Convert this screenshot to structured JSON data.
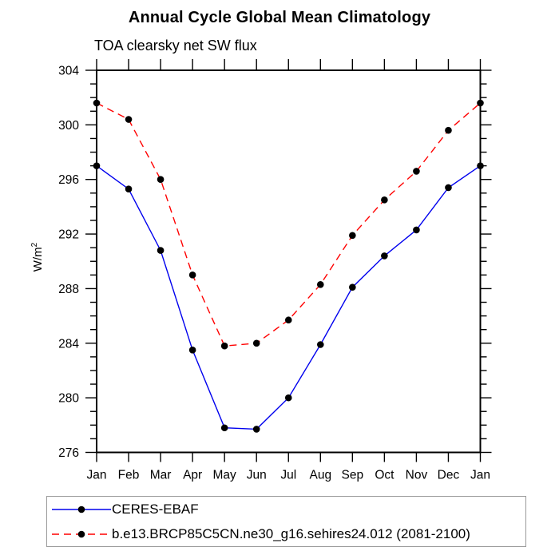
{
  "title": "Annual Cycle Global Mean Climatology",
  "subtitle": "TOA clearsky net SW flux",
  "y_axis": {
    "title_base": "W/m",
    "title_sup": "2",
    "tick_labels": [
      "276",
      "280",
      "284",
      "288",
      "292",
      "296",
      "300",
      "304"
    ],
    "min": 276,
    "max": 304,
    "major_step": 4,
    "minor_step": 1
  },
  "x_axis": {
    "tick_labels": [
      "Jan",
      "Feb",
      "Mar",
      "Apr",
      "May",
      "Jun",
      "Jul",
      "Aug",
      "Sep",
      "Oct",
      "Nov",
      "Dec",
      "Jan"
    ]
  },
  "colors": {
    "series1": "#0000ee",
    "series2": "#ff0000",
    "marker": "#000000",
    "axis": "#000000"
  },
  "legend": {
    "entries": [
      {
        "label": "CERES-EBAF",
        "color": "#0000ee",
        "style": "solid"
      },
      {
        "label": "b.e13.BRCP85C5CN.ne30_g16.sehires24.012 (2081-2100)",
        "color": "#ff0000",
        "style": "dashed"
      }
    ]
  },
  "chart_data": {
    "type": "line",
    "x": [
      "Jan",
      "Feb",
      "Mar",
      "Apr",
      "May",
      "Jun",
      "Jul",
      "Aug",
      "Sep",
      "Oct",
      "Nov",
      "Dec",
      "Jan"
    ],
    "series": [
      {
        "name": "CERES-EBAF",
        "color": "#0000ee",
        "line_style": "solid",
        "marker": "filled-black-circle",
        "values": [
          297.0,
          295.3,
          290.8,
          283.5,
          277.8,
          277.7,
          280.0,
          283.9,
          288.1,
          290.4,
          292.3,
          295.4,
          297.0
        ]
      },
      {
        "name": "b.e13.BRCP85C5CN.ne30_g16.sehires24.012 (2081-2100)",
        "color": "#ff0000",
        "line_style": "dashed",
        "marker": "filled-black-circle",
        "values": [
          301.6,
          300.4,
          296.0,
          289.0,
          283.8,
          284.0,
          285.7,
          288.3,
          291.9,
          294.5,
          296.6,
          299.6,
          301.6
        ]
      }
    ],
    "title": "Annual Cycle Global Mean Climatology",
    "subtitle": "TOA clearsky net SW flux",
    "xlabel": "",
    "ylabel": "W/m2",
    "ylim": [
      276,
      304
    ],
    "grid": false,
    "tick_style": "outward, minor y ticks every 1, x ticks at months only",
    "legend_position": "bottom-left box"
  }
}
